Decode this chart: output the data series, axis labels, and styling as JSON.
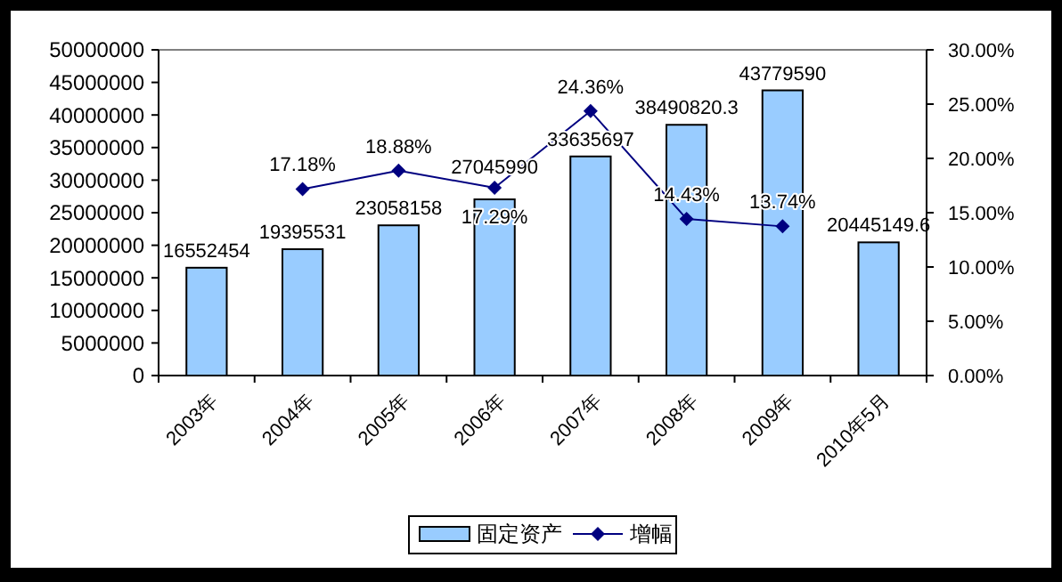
{
  "chart_data": {
    "type": "bar",
    "categories": [
      "2003年",
      "2004年",
      "2005年",
      "2006年",
      "2007年",
      "2008年",
      "2009年",
      "2010年5月"
    ],
    "series": [
      {
        "name": "固定资产",
        "color": "#99ccff",
        "values": [
          16552454,
          19395531,
          23058158,
          27045990,
          33635697,
          38490820.3,
          43779590,
          20445149.6
        ],
        "value_labels": [
          "16552454",
          "19395531",
          "23058158",
          "27045990",
          "33635697",
          "38490820.3",
          "43779590",
          "20445149.6"
        ]
      },
      {
        "name": "增幅",
        "type": "line",
        "axis": "y2",
        "color": "#000080",
        "marker": "diamond",
        "values": [
          null,
          17.18,
          18.88,
          17.29,
          24.36,
          14.43,
          13.74,
          null
        ],
        "value_labels": [
          null,
          "17.18%",
          "18.88%",
          "17.29%",
          "24.36%",
          "14.43%",
          "13.74%",
          null
        ]
      }
    ],
    "ylim": [
      0,
      50000000
    ],
    "yticks": [
      0,
      5000000,
      10000000,
      15000000,
      20000000,
      25000000,
      30000000,
      35000000,
      40000000,
      45000000,
      50000000
    ],
    "y2lim": [
      0,
      30
    ],
    "y2ticks": [
      {
        "value": 0,
        "label": "0.00%"
      },
      {
        "value": 5,
        "label": "5.00%"
      },
      {
        "value": 10,
        "label": "10.00%"
      },
      {
        "value": 15,
        "label": "15.00%"
      },
      {
        "value": 20,
        "label": "20.00%"
      },
      {
        "value": 25,
        "label": "25.00%"
      },
      {
        "value": 30,
        "label": "30.00%"
      }
    ],
    "legend": "bottom"
  }
}
